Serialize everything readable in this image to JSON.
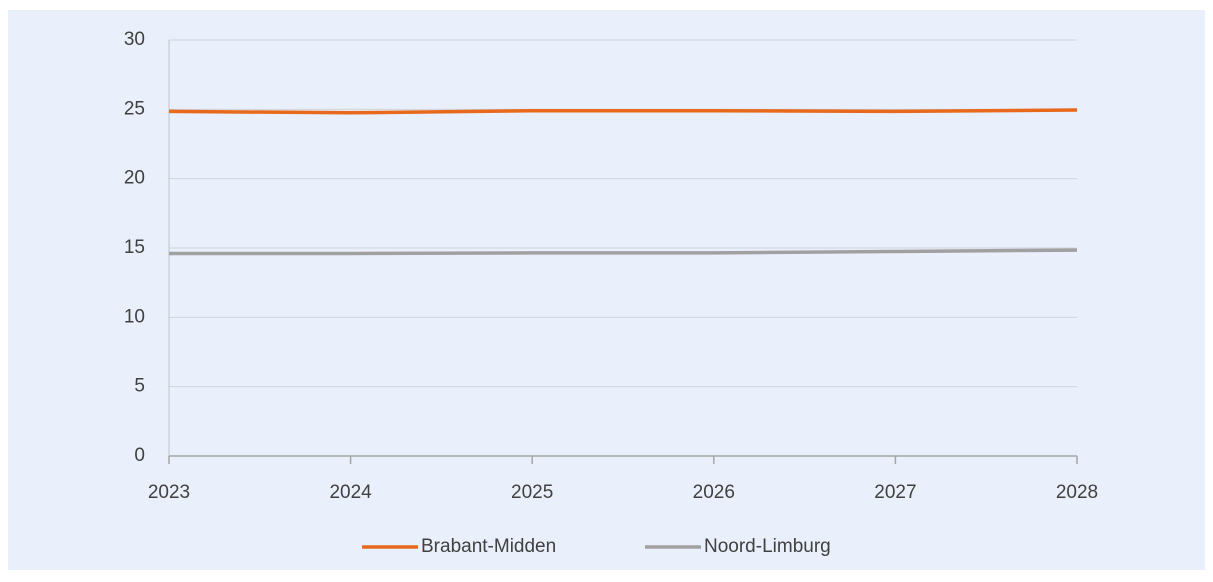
{
  "chart_data": {
    "type": "line",
    "x": [
      2023,
      2024,
      2025,
      2026,
      2027,
      2028
    ],
    "series": [
      {
        "name": "Brabant-Midden",
        "color": "#e8691c",
        "values": [
          24.85,
          24.75,
          24.9,
          24.9,
          24.85,
          24.95
        ]
      },
      {
        "name": "Noord-Limburg",
        "color": "#a0a0a0",
        "values": [
          14.6,
          14.6,
          14.65,
          14.65,
          14.75,
          14.85
        ]
      }
    ],
    "xlim": [
      2023,
      2028
    ],
    "xticks": [
      2023,
      2024,
      2025,
      2026,
      2027,
      2028
    ],
    "ylim": [
      0,
      30
    ],
    "yticks": [
      0,
      5,
      10,
      15,
      20,
      25,
      30
    ],
    "grid": true,
    "legend": "bottom"
  }
}
